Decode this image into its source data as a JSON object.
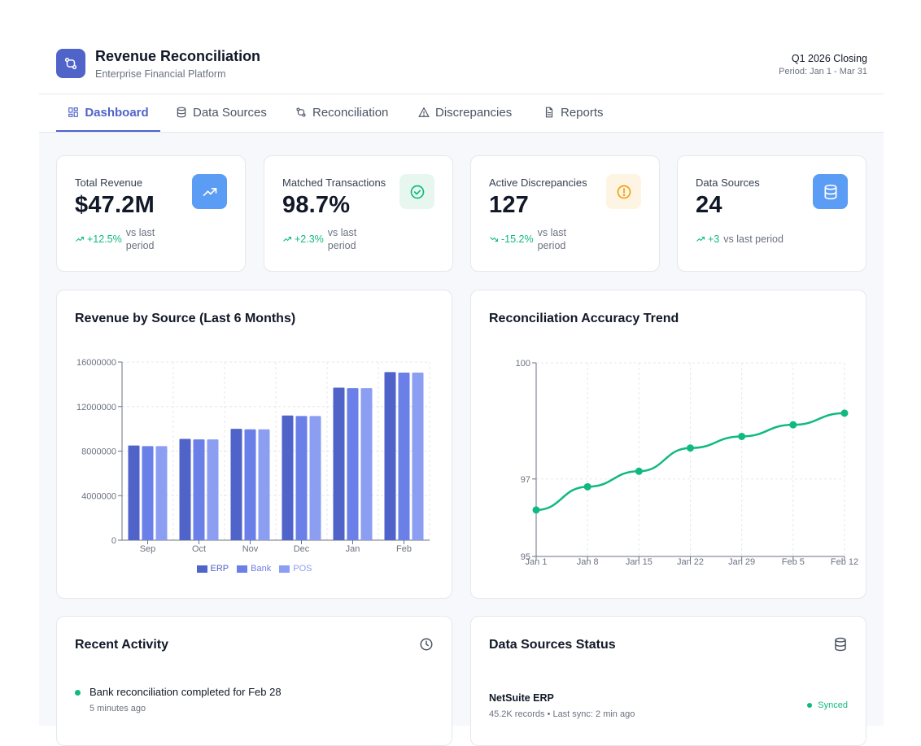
{
  "header": {
    "title": "Revenue Reconciliation",
    "subtitle": "Enterprise Financial Platform",
    "period_title": "Q1 2026 Closing",
    "period_range": "Period: Jan 1 - Mar 31",
    "logo_icon": "git-compare-icon"
  },
  "nav": {
    "tabs": [
      {
        "label": "Dashboard",
        "icon": "layout-dashboard-icon",
        "active": true
      },
      {
        "label": "Data Sources",
        "icon": "database-icon",
        "active": false
      },
      {
        "label": "Reconciliation",
        "icon": "git-compare-icon",
        "active": false
      },
      {
        "label": "Discrepancies",
        "icon": "alert-triangle-icon",
        "active": false
      },
      {
        "label": "Reports",
        "icon": "file-text-icon",
        "active": false
      }
    ]
  },
  "kpis": [
    {
      "label": "Total Revenue",
      "value": "$47.2M",
      "delta": "+12.5%",
      "vs": "vs last period",
      "icon": "trending-up-icon",
      "icon_bg": "#5b9cf5",
      "icon_color": "#ffffff"
    },
    {
      "label": "Matched Transactions",
      "value": "98.7%",
      "delta": "+2.3%",
      "vs": "vs last period",
      "icon": "check-circle-icon",
      "icon_bg": "#e7f7f0",
      "icon_color": "#10b981"
    },
    {
      "label": "Active Discrepancies",
      "value": "127",
      "delta": "-15.2%",
      "vs": "vs last period",
      "icon": "alert-circle-icon",
      "icon_bg": "#fdf4e3",
      "icon_color": "#f59e0b"
    },
    {
      "label": "Data Sources",
      "value": "24",
      "delta": "+3",
      "vs": "vs last period",
      "icon": "database-icon",
      "icon_bg": "#5b9cf5",
      "icon_color": "#ffffff"
    }
  ],
  "revenue_chart": {
    "title": "Revenue by Source (Last 6 Months)",
    "legend": [
      "ERP",
      "Bank",
      "POS"
    ]
  },
  "accuracy_chart": {
    "title": "Reconciliation Accuracy Trend"
  },
  "activity": {
    "title": "Recent Activity",
    "icon": "clock-icon",
    "items": [
      {
        "text": "Bank reconciliation completed for Feb 28",
        "time": "5 minutes ago"
      }
    ]
  },
  "sources_status": {
    "title": "Data Sources Status",
    "icon": "database-icon",
    "items": [
      {
        "name": "NetSuite ERP",
        "detail": "45.2K records • Last sync: 2 min ago",
        "status": "Synced"
      }
    ]
  },
  "colors": {
    "accent": "#4f63c9",
    "success": "#10b981",
    "erp": "#4f63c9",
    "bank": "#6a7fe8",
    "pos": "#8b9ef2"
  },
  "chart_data": [
    {
      "type": "bar",
      "title": "Revenue by Source (Last 6 Months)",
      "categories": [
        "Sep",
        "Oct",
        "Nov",
        "Dec",
        "Jan",
        "Feb"
      ],
      "series": [
        {
          "name": "ERP",
          "values": [
            8500000,
            9100000,
            10000000,
            11200000,
            13700000,
            15100000
          ]
        },
        {
          "name": "Bank",
          "values": [
            8450000,
            9050000,
            9950000,
            11150000,
            13650000,
            15050000
          ]
        },
        {
          "name": "POS",
          "values": [
            8450000,
            9050000,
            9950000,
            11150000,
            13650000,
            15050000
          ]
        }
      ],
      "yticks": [
        0,
        4000000,
        8000000,
        12000000,
        16000000
      ],
      "ylim": [
        0,
        16000000
      ],
      "grid": true,
      "legend": "bottom"
    },
    {
      "type": "line",
      "title": "Reconciliation Accuracy Trend",
      "categories": [
        "Jan 1",
        "Jan 8",
        "Jan 15",
        "Jan 22",
        "Jan 29",
        "Feb 5",
        "Feb 12"
      ],
      "series": [
        {
          "values": [
            96.2,
            96.8,
            97.2,
            97.8,
            98.1,
            98.4,
            98.7
          ]
        }
      ],
      "yticks": [
        95,
        97,
        100
      ],
      "ylim": [
        95,
        100
      ],
      "grid": true
    }
  ]
}
